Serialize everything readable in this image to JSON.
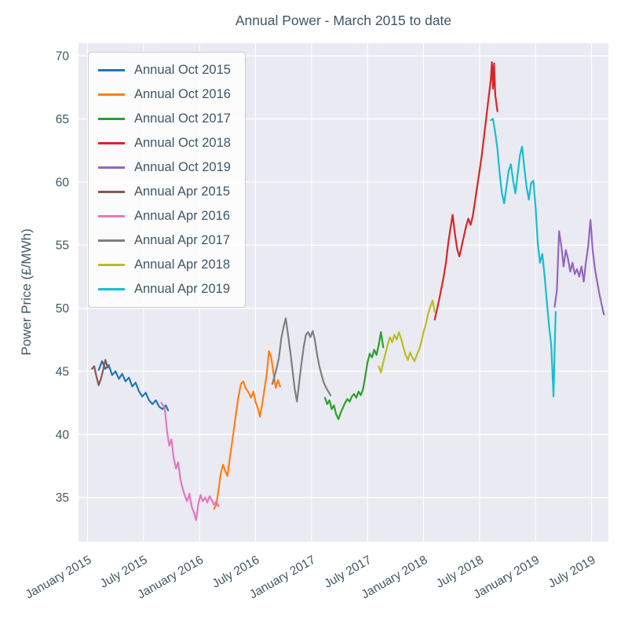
{
  "chart_data": {
    "type": "line",
    "title": "Annual Power - March 2015 to date",
    "xlabel": "",
    "ylabel": "Power Price (£/MWh)",
    "xlim": [
      2014.92,
      2019.65
    ],
    "ylim": [
      31.5,
      71.0
    ],
    "grid": true,
    "legend_position": "upper-left",
    "colors": {
      "plot_bg": "#eaeaf2",
      "grid": "#ffffff",
      "text": "#3f5666"
    },
    "y_ticks": [
      35,
      40,
      45,
      50,
      55,
      60,
      65,
      70
    ],
    "x_ticks": [
      {
        "x": 2015.0,
        "label": "January 2015"
      },
      {
        "x": 2015.5,
        "label": "July 2015"
      },
      {
        "x": 2016.0,
        "label": "January 2016"
      },
      {
        "x": 2016.5,
        "label": "July 2016"
      },
      {
        "x": 2017.0,
        "label": "January 2017"
      },
      {
        "x": 2017.5,
        "label": "July 2017"
      },
      {
        "x": 2018.0,
        "label": "January 2018"
      },
      {
        "x": 2018.5,
        "label": "July 2018"
      },
      {
        "x": 2019.0,
        "label": "January 2019"
      },
      {
        "x": 2019.5,
        "label": "July 2019"
      }
    ],
    "series": [
      {
        "name": "Annual Oct 2015",
        "color": "#1f77b4",
        "points": [
          [
            2015.1,
            45.1
          ],
          [
            2015.13,
            45.8
          ],
          [
            2015.16,
            45.2
          ],
          [
            2015.19,
            45.5
          ],
          [
            2015.22,
            44.7
          ],
          [
            2015.25,
            45.0
          ],
          [
            2015.28,
            44.4
          ],
          [
            2015.31,
            44.8
          ],
          [
            2015.34,
            44.2
          ],
          [
            2015.37,
            44.5
          ],
          [
            2015.4,
            43.8
          ],
          [
            2015.43,
            44.1
          ],
          [
            2015.46,
            43.4
          ],
          [
            2015.49,
            43.0
          ],
          [
            2015.52,
            43.3
          ],
          [
            2015.55,
            42.7
          ],
          [
            2015.58,
            42.4
          ],
          [
            2015.61,
            42.7
          ],
          [
            2015.64,
            42.2
          ],
          [
            2015.67,
            42.0
          ],
          [
            2015.7,
            42.3
          ],
          [
            2015.72,
            41.9
          ]
        ]
      },
      {
        "name": "Annual Oct 2016",
        "color": "#ff7f0e",
        "points": [
          [
            2016.13,
            34.1
          ],
          [
            2016.15,
            34.4
          ],
          [
            2016.17,
            35.6
          ],
          [
            2016.19,
            36.9
          ],
          [
            2016.21,
            37.6
          ],
          [
            2016.23,
            37.1
          ],
          [
            2016.25,
            36.7
          ],
          [
            2016.27,
            38.1
          ],
          [
            2016.29,
            39.3
          ],
          [
            2016.31,
            40.6
          ],
          [
            2016.33,
            41.9
          ],
          [
            2016.35,
            43.1
          ],
          [
            2016.37,
            44.0
          ],
          [
            2016.39,
            44.2
          ],
          [
            2016.41,
            43.7
          ],
          [
            2016.44,
            43.3
          ],
          [
            2016.46,
            42.9
          ],
          [
            2016.48,
            43.4
          ],
          [
            2016.5,
            42.6
          ],
          [
            2016.52,
            42.1
          ],
          [
            2016.54,
            41.4
          ],
          [
            2016.56,
            42.4
          ],
          [
            2016.58,
            43.6
          ],
          [
            2016.6,
            44.7
          ],
          [
            2016.62,
            46.6
          ],
          [
            2016.64,
            46.1
          ],
          [
            2016.66,
            44.9
          ],
          [
            2016.68,
            43.7
          ],
          [
            2016.7,
            44.3
          ],
          [
            2016.72,
            43.8
          ]
        ]
      },
      {
        "name": "Annual Oct 2017",
        "color": "#2ca02c",
        "points": [
          [
            2017.12,
            42.9
          ],
          [
            2017.14,
            42.4
          ],
          [
            2017.16,
            42.7
          ],
          [
            2017.18,
            42.0
          ],
          [
            2017.2,
            42.3
          ],
          [
            2017.22,
            41.6
          ],
          [
            2017.24,
            41.2
          ],
          [
            2017.26,
            41.7
          ],
          [
            2017.28,
            42.1
          ],
          [
            2017.3,
            42.5
          ],
          [
            2017.32,
            42.8
          ],
          [
            2017.34,
            42.6
          ],
          [
            2017.36,
            43.0
          ],
          [
            2017.38,
            43.2
          ],
          [
            2017.4,
            42.9
          ],
          [
            2017.42,
            43.4
          ],
          [
            2017.44,
            43.1
          ],
          [
            2017.46,
            43.6
          ],
          [
            2017.48,
            44.6
          ],
          [
            2017.5,
            45.7
          ],
          [
            2017.52,
            46.4
          ],
          [
            2017.54,
            46.1
          ],
          [
            2017.56,
            46.7
          ],
          [
            2017.58,
            46.3
          ],
          [
            2017.6,
            47.1
          ],
          [
            2017.62,
            48.1
          ],
          [
            2017.64,
            46.9
          ]
        ]
      },
      {
        "name": "Annual Oct 2018",
        "color": "#d62728",
        "points": [
          [
            2018.1,
            49.1
          ],
          [
            2018.12,
            49.9
          ],
          [
            2018.14,
            50.7
          ],
          [
            2018.16,
            51.6
          ],
          [
            2018.18,
            52.5
          ],
          [
            2018.2,
            53.6
          ],
          [
            2018.22,
            55.1
          ],
          [
            2018.24,
            56.3
          ],
          [
            2018.26,
            57.4
          ],
          [
            2018.28,
            55.9
          ],
          [
            2018.3,
            54.7
          ],
          [
            2018.32,
            54.1
          ],
          [
            2018.34,
            54.9
          ],
          [
            2018.36,
            55.7
          ],
          [
            2018.38,
            56.5
          ],
          [
            2018.4,
            57.1
          ],
          [
            2018.42,
            56.6
          ],
          [
            2018.44,
            57.3
          ],
          [
            2018.46,
            58.5
          ],
          [
            2018.48,
            59.7
          ],
          [
            2018.5,
            60.9
          ],
          [
            2018.52,
            62.1
          ],
          [
            2018.54,
            63.6
          ],
          [
            2018.56,
            65.1
          ],
          [
            2018.58,
            66.6
          ],
          [
            2018.6,
            68.1
          ],
          [
            2018.61,
            69.5
          ],
          [
            2018.62,
            67.4
          ],
          [
            2018.63,
            69.4
          ],
          [
            2018.64,
            66.9
          ],
          [
            2018.66,
            65.6
          ]
        ]
      },
      {
        "name": "Annual Oct 2019",
        "color": "#9467bd",
        "points": [
          [
            2019.17,
            50.1
          ],
          [
            2019.19,
            51.4
          ],
          [
            2019.21,
            56.1
          ],
          [
            2019.23,
            54.9
          ],
          [
            2019.25,
            53.3
          ],
          [
            2019.27,
            54.6
          ],
          [
            2019.29,
            53.9
          ],
          [
            2019.31,
            52.9
          ],
          [
            2019.33,
            53.6
          ],
          [
            2019.35,
            52.7
          ],
          [
            2019.37,
            53.1
          ],
          [
            2019.39,
            52.5
          ],
          [
            2019.41,
            53.3
          ],
          [
            2019.43,
            52.1
          ],
          [
            2019.45,
            53.7
          ],
          [
            2019.47,
            54.9
          ],
          [
            2019.49,
            57.0
          ],
          [
            2019.51,
            54.6
          ],
          [
            2019.53,
            53.1
          ],
          [
            2019.55,
            52.1
          ],
          [
            2019.57,
            51.1
          ],
          [
            2019.59,
            50.3
          ],
          [
            2019.61,
            49.5
          ]
        ]
      },
      {
        "name": "Annual Apr 2015",
        "color": "#8c564b",
        "points": [
          [
            2015.04,
            45.2
          ],
          [
            2015.06,
            45.4
          ],
          [
            2015.08,
            44.6
          ],
          [
            2015.1,
            43.9
          ],
          [
            2015.12,
            44.4
          ],
          [
            2015.14,
            45.1
          ],
          [
            2015.16,
            45.9
          ],
          [
            2015.18,
            45.3
          ]
        ]
      },
      {
        "name": "Annual Apr 2016",
        "color": "#e377c2",
        "points": [
          [
            2015.66,
            42.5
          ],
          [
            2015.69,
            42.1
          ],
          [
            2015.71,
            40.3
          ],
          [
            2015.73,
            39.1
          ],
          [
            2015.75,
            39.6
          ],
          [
            2015.77,
            38.1
          ],
          [
            2015.79,
            37.3
          ],
          [
            2015.81,
            37.8
          ],
          [
            2015.83,
            36.4
          ],
          [
            2015.85,
            35.7
          ],
          [
            2015.87,
            35.1
          ],
          [
            2015.89,
            34.7
          ],
          [
            2015.91,
            35.3
          ],
          [
            2015.93,
            34.3
          ],
          [
            2015.95,
            33.8
          ],
          [
            2015.97,
            33.2
          ],
          [
            2015.99,
            34.5
          ],
          [
            2016.01,
            35.2
          ],
          [
            2016.03,
            34.7
          ],
          [
            2016.05,
            35.0
          ],
          [
            2016.07,
            34.6
          ],
          [
            2016.09,
            35.1
          ],
          [
            2016.11,
            34.8
          ],
          [
            2016.13,
            34.4
          ],
          [
            2016.15,
            34.7
          ],
          [
            2016.17,
            34.3
          ]
        ]
      },
      {
        "name": "Annual Apr 2017",
        "color": "#7f7f7f",
        "points": [
          [
            2016.65,
            44.0
          ],
          [
            2016.67,
            44.6
          ],
          [
            2016.69,
            45.3
          ],
          [
            2016.71,
            46.1
          ],
          [
            2016.73,
            47.6
          ],
          [
            2016.75,
            48.5
          ],
          [
            2016.77,
            49.2
          ],
          [
            2016.79,
            47.9
          ],
          [
            2016.81,
            46.6
          ],
          [
            2016.83,
            45.1
          ],
          [
            2016.85,
            43.6
          ],
          [
            2016.87,
            42.6
          ],
          [
            2016.89,
            44.1
          ],
          [
            2016.91,
            45.6
          ],
          [
            2016.93,
            46.9
          ],
          [
            2016.95,
            47.9
          ],
          [
            2016.97,
            48.1
          ],
          [
            2016.99,
            47.7
          ],
          [
            2017.01,
            48.2
          ],
          [
            2017.03,
            47.5
          ],
          [
            2017.05,
            46.3
          ],
          [
            2017.07,
            45.4
          ],
          [
            2017.09,
            44.7
          ],
          [
            2017.11,
            44.1
          ],
          [
            2017.13,
            43.7
          ],
          [
            2017.15,
            43.4
          ],
          [
            2017.17,
            43.1
          ]
        ]
      },
      {
        "name": "Annual Apr 2018",
        "color": "#bcbd22",
        "points": [
          [
            2017.6,
            45.4
          ],
          [
            2017.62,
            44.9
          ],
          [
            2017.64,
            45.7
          ],
          [
            2017.66,
            46.4
          ],
          [
            2017.68,
            47.1
          ],
          [
            2017.7,
            47.7
          ],
          [
            2017.72,
            47.3
          ],
          [
            2017.74,
            47.9
          ],
          [
            2017.76,
            47.5
          ],
          [
            2017.78,
            48.1
          ],
          [
            2017.8,
            47.6
          ],
          [
            2017.82,
            46.9
          ],
          [
            2017.84,
            46.3
          ],
          [
            2017.86,
            45.9
          ],
          [
            2017.88,
            46.5
          ],
          [
            2017.9,
            46.1
          ],
          [
            2017.92,
            45.8
          ],
          [
            2017.94,
            46.3
          ],
          [
            2017.96,
            46.7
          ],
          [
            2017.98,
            47.3
          ],
          [
            2018.0,
            48.1
          ],
          [
            2018.02,
            48.7
          ],
          [
            2018.04,
            49.5
          ],
          [
            2018.06,
            50.1
          ],
          [
            2018.08,
            50.6
          ],
          [
            2018.1,
            49.7
          ]
        ]
      },
      {
        "name": "Annual Apr 2019",
        "color": "#17becf",
        "points": [
          [
            2018.6,
            64.9
          ],
          [
            2018.62,
            65.0
          ],
          [
            2018.64,
            63.9
          ],
          [
            2018.66,
            62.6
          ],
          [
            2018.68,
            60.6
          ],
          [
            2018.7,
            59.1
          ],
          [
            2018.72,
            58.3
          ],
          [
            2018.74,
            59.6
          ],
          [
            2018.76,
            60.9
          ],
          [
            2018.78,
            61.4
          ],
          [
            2018.8,
            60.1
          ],
          [
            2018.82,
            59.1
          ],
          [
            2018.84,
            60.6
          ],
          [
            2018.86,
            62.1
          ],
          [
            2018.88,
            62.8
          ],
          [
            2018.9,
            61.1
          ],
          [
            2018.92,
            59.6
          ],
          [
            2018.94,
            58.6
          ],
          [
            2018.96,
            59.9
          ],
          [
            2018.98,
            60.1
          ],
          [
            2019.0,
            58.1
          ],
          [
            2019.02,
            55.1
          ],
          [
            2019.04,
            53.6
          ],
          [
            2019.06,
            54.3
          ],
          [
            2019.08,
            52.6
          ],
          [
            2019.1,
            50.6
          ],
          [
            2019.12,
            48.6
          ],
          [
            2019.14,
            47.1
          ],
          [
            2019.16,
            43.0
          ],
          [
            2019.17,
            46.6
          ],
          [
            2019.18,
            49.7
          ]
        ]
      }
    ]
  }
}
